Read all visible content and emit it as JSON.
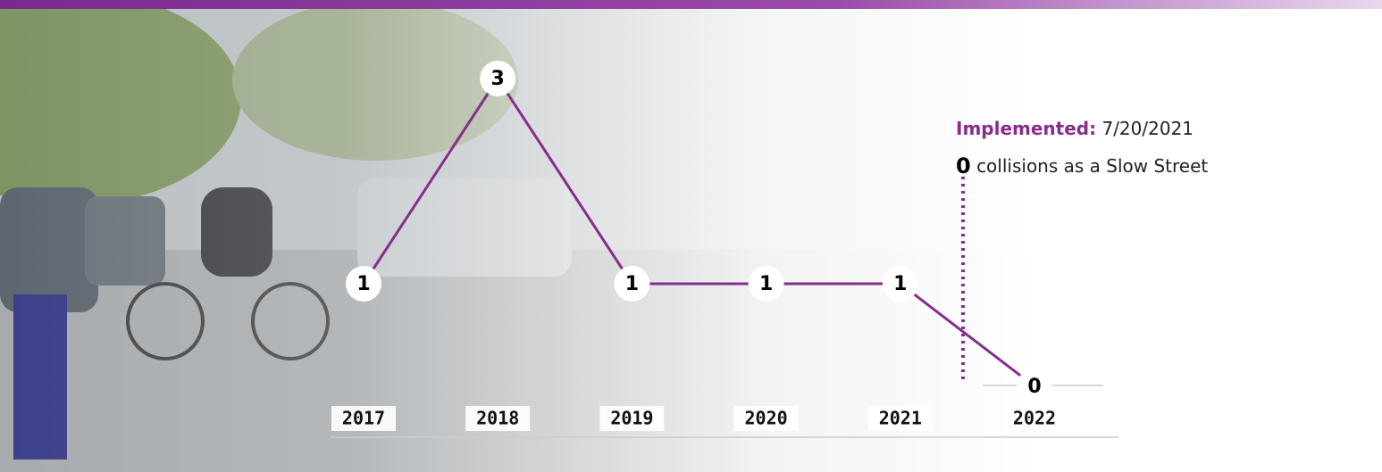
{
  "chart_data": {
    "type": "line",
    "categories": [
      "2017",
      "2018",
      "2019",
      "2020",
      "2021",
      "2022"
    ],
    "values": [
      1,
      3,
      1,
      1,
      1,
      0
    ],
    "color": "#862d8c",
    "ylim": [
      0,
      3
    ],
    "annotations": {
      "label": "Implemented:",
      "date": "7/20/2021",
      "count": "0",
      "note": "collisions as a Slow Street"
    }
  }
}
